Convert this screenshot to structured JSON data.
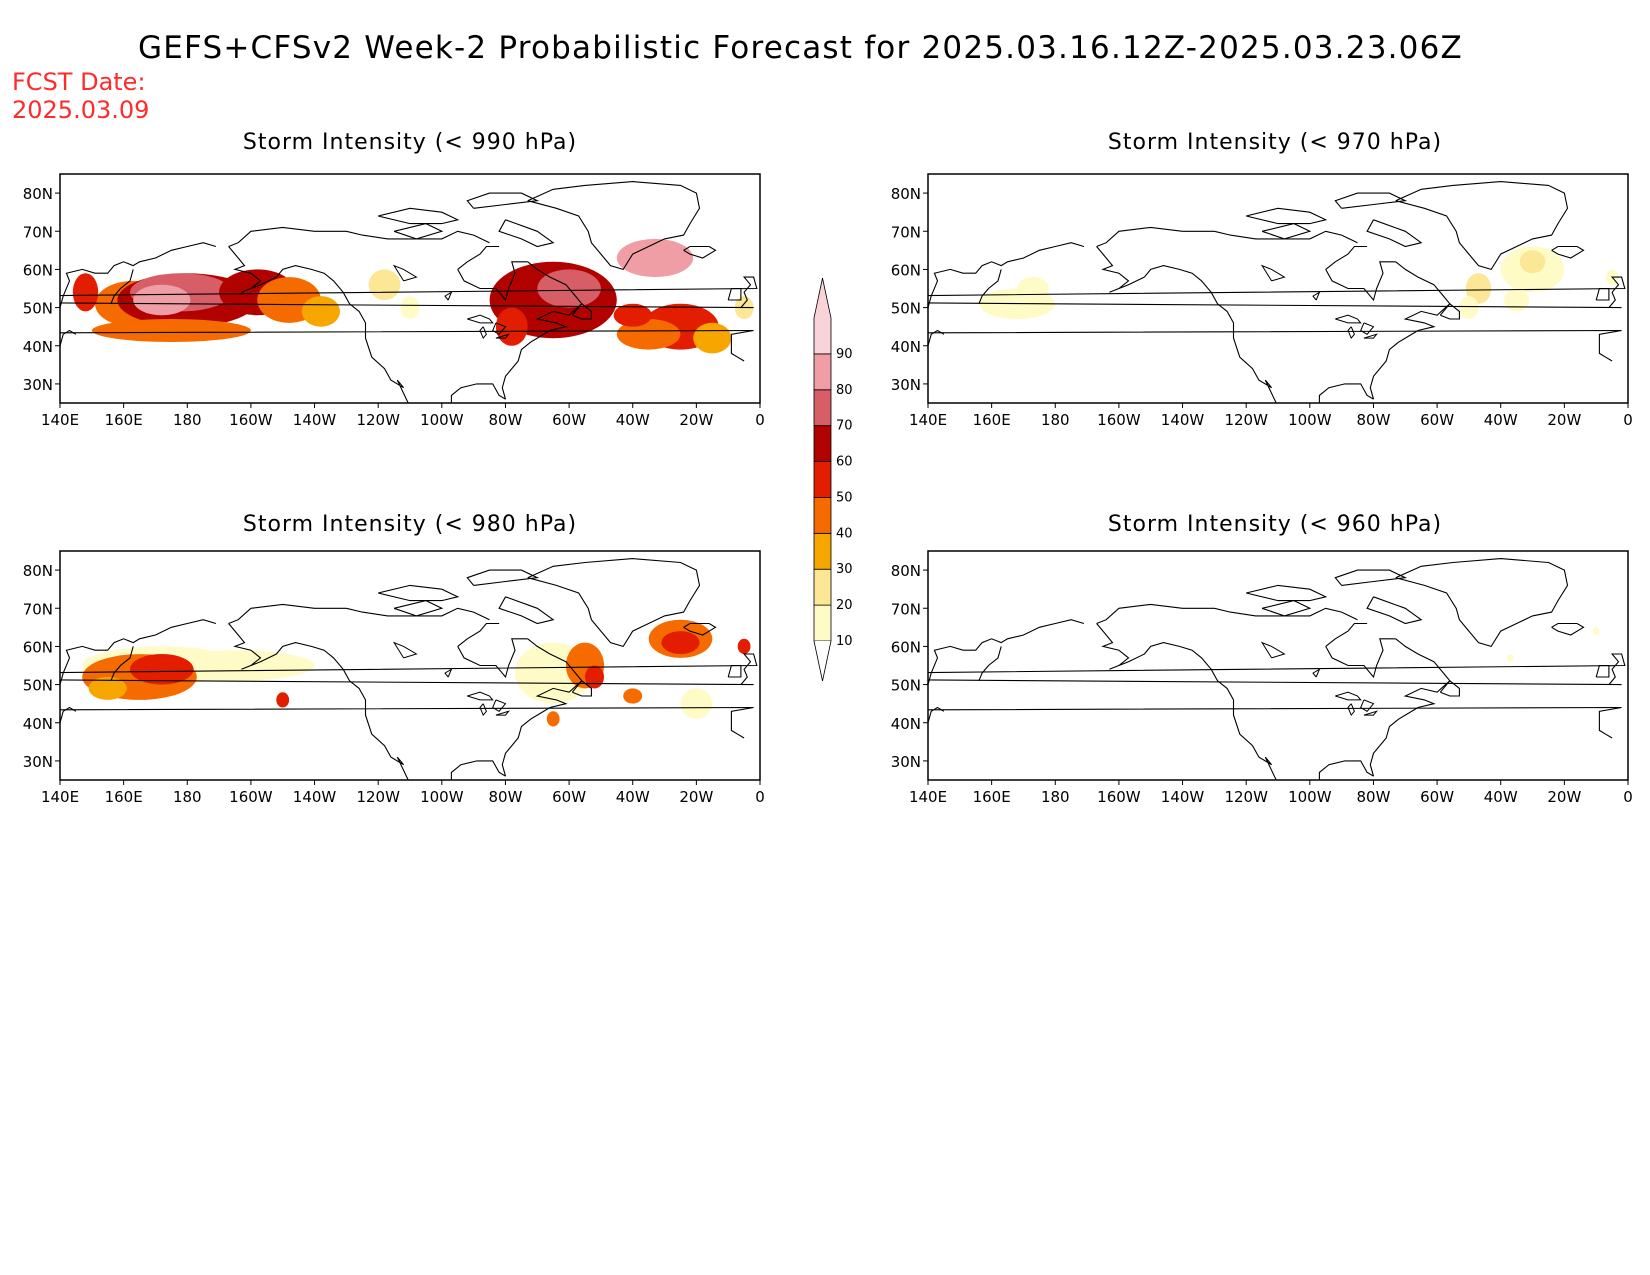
{
  "title": "GEFS+CFSv2 Week-2 Probabilistic Forecast for 2025.03.16.12Z-2025.03.23.06Z",
  "fcst_date_label": "FCST Date:",
  "fcst_date": "2025.03.09",
  "colors": {
    "c10": "#fffbc6",
    "c20": "#fbe795",
    "c30": "#f7a600",
    "c40": "#f66b00",
    "c50": "#e31d00",
    "c60": "#b20200",
    "c70": "#d75d66",
    "c80": "#ef9ea6",
    "c90": "#fad3d8"
  },
  "colorbar": {
    "levels": [
      "10",
      "20",
      "30",
      "40",
      "50",
      "60",
      "70",
      "80",
      "90"
    ]
  },
  "lat_ticks": [
    "80N",
    "70N",
    "60N",
    "50N",
    "40N",
    "30N"
  ],
  "lon_ticks": [
    "140E",
    "160E",
    "180",
    "160W",
    "140W",
    "120W",
    "100W",
    "80W",
    "60W",
    "40W",
    "20W",
    "0"
  ],
  "panels": [
    {
      "title": "Storm Intensity (< 990 hPa)",
      "blobs": [
        {
          "lon": 163,
          "lat": 51,
          "rx": 12,
          "ry": 6,
          "c": "c40"
        },
        {
          "lon": 180,
          "lat": 52,
          "rx": 22,
          "ry": 7,
          "c": "c60"
        },
        {
          "lon": 178,
          "lat": 54,
          "rx": 16,
          "ry": 5,
          "c": "c70"
        },
        {
          "lon": 172,
          "lat": 52,
          "rx": 9,
          "ry": 4,
          "c": "c80"
        },
        {
          "lon": -158,
          "lat": 54,
          "rx": 12,
          "ry": 6,
          "c": "c60"
        },
        {
          "lon": -148,
          "lat": 52,
          "rx": 10,
          "ry": 6,
          "c": "c40"
        },
        {
          "lon": -138,
          "lat": 49,
          "rx": 6,
          "ry": 4,
          "c": "c30"
        },
        {
          "lon": 148,
          "lat": 54,
          "rx": 4,
          "ry": 5,
          "c": "c50"
        },
        {
          "lon": 175,
          "lat": 44,
          "rx": 25,
          "ry": 3,
          "c": "c40"
        },
        {
          "lon": -118,
          "lat": 56,
          "rx": 5,
          "ry": 4,
          "c": "c20"
        },
        {
          "lon": -110,
          "lat": 50,
          "rx": 3,
          "ry": 3,
          "c": "c10"
        },
        {
          "lon": -65,
          "lat": 52,
          "rx": 20,
          "ry": 10,
          "c": "c60"
        },
        {
          "lon": -60,
          "lat": 55,
          "rx": 10,
          "ry": 5,
          "c": "c70"
        },
        {
          "lon": -78,
          "lat": 45,
          "rx": 5,
          "ry": 5,
          "c": "c50"
        },
        {
          "lon": -33,
          "lat": 63,
          "rx": 12,
          "ry": 5,
          "c": "c80"
        },
        {
          "lon": -25,
          "lat": 45,
          "rx": 12,
          "ry": 6,
          "c": "c50"
        },
        {
          "lon": -35,
          "lat": 43,
          "rx": 10,
          "ry": 4,
          "c": "c40"
        },
        {
          "lon": -15,
          "lat": 42,
          "rx": 6,
          "ry": 4,
          "c": "c30"
        },
        {
          "lon": -5,
          "lat": 50,
          "rx": 3,
          "ry": 3,
          "c": "c20"
        },
        {
          "lon": -40,
          "lat": 48,
          "rx": 6,
          "ry": 3,
          "c": "c50"
        }
      ]
    },
    {
      "title": "Storm Intensity (< 970 hPa)",
      "blobs": [
        {
          "lon": 168,
          "lat": 51,
          "rx": 12,
          "ry": 4,
          "c": "c10"
        },
        {
          "lon": 173,
          "lat": 55,
          "rx": 5,
          "ry": 3,
          "c": "c10"
        },
        {
          "lon": -47,
          "lat": 55,
          "rx": 4,
          "ry": 4,
          "c": "c20"
        },
        {
          "lon": -50,
          "lat": 50,
          "rx": 3,
          "ry": 3,
          "c": "c10"
        },
        {
          "lon": -30,
          "lat": 60,
          "rx": 10,
          "ry": 6,
          "c": "c10"
        },
        {
          "lon": -30,
          "lat": 62,
          "rx": 4,
          "ry": 3,
          "c": "c20"
        },
        {
          "lon": -35,
          "lat": 52,
          "rx": 4,
          "ry": 3,
          "c": "c10"
        },
        {
          "lon": -5,
          "lat": 58,
          "rx": 2,
          "ry": 2,
          "c": "c10"
        }
      ]
    },
    {
      "title": "Storm Intensity (< 980 hPa)",
      "blobs": [
        {
          "lon": 172,
          "lat": 55,
          "rx": 25,
          "ry": 5,
          "c": "c10"
        },
        {
          "lon": -165,
          "lat": 55,
          "rx": 25,
          "ry": 4,
          "c": "c10"
        },
        {
          "lon": 165,
          "lat": 52,
          "rx": 18,
          "ry": 6,
          "c": "c40"
        },
        {
          "lon": 172,
          "lat": 54,
          "rx": 10,
          "ry": 4,
          "c": "c50"
        },
        {
          "lon": 155,
          "lat": 49,
          "rx": 6,
          "ry": 3,
          "c": "c30"
        },
        {
          "lon": -150,
          "lat": 46,
          "rx": 2,
          "ry": 2,
          "c": "c50"
        },
        {
          "lon": -65,
          "lat": 53,
          "rx": 12,
          "ry": 8,
          "c": "c10"
        },
        {
          "lon": -55,
          "lat": 55,
          "rx": 6,
          "ry": 6,
          "c": "c40"
        },
        {
          "lon": -52,
          "lat": 52,
          "rx": 3,
          "ry": 3,
          "c": "c50"
        },
        {
          "lon": -25,
          "lat": 62,
          "rx": 10,
          "ry": 5,
          "c": "c40"
        },
        {
          "lon": -25,
          "lat": 61,
          "rx": 6,
          "ry": 3,
          "c": "c50"
        },
        {
          "lon": -20,
          "lat": 45,
          "rx": 5,
          "ry": 4,
          "c": "c10"
        },
        {
          "lon": -40,
          "lat": 47,
          "rx": 3,
          "ry": 2,
          "c": "c40"
        },
        {
          "lon": -65,
          "lat": 41,
          "rx": 2,
          "ry": 2,
          "c": "c40"
        },
        {
          "lon": -5,
          "lat": 60,
          "rx": 2,
          "ry": 2,
          "c": "c50"
        }
      ]
    },
    {
      "title": "Storm Intensity (< 960 hPa)",
      "blobs": [
        {
          "lon": -10,
          "lat": 64,
          "rx": 1,
          "ry": 1,
          "c": "c10"
        },
        {
          "lon": -37,
          "lat": 57,
          "rx": 1,
          "ry": 1,
          "c": "c10"
        }
      ]
    }
  ]
}
